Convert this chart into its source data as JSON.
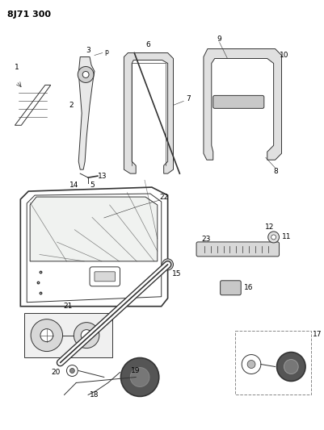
{
  "title": "8J71 300",
  "bg_color": "#ffffff",
  "line_color": "#333333",
  "label_color": "#000000",
  "title_fontsize": 8,
  "label_fontsize": 6.5,
  "fig_width": 4.01,
  "fig_height": 5.33,
  "dpi": 100
}
